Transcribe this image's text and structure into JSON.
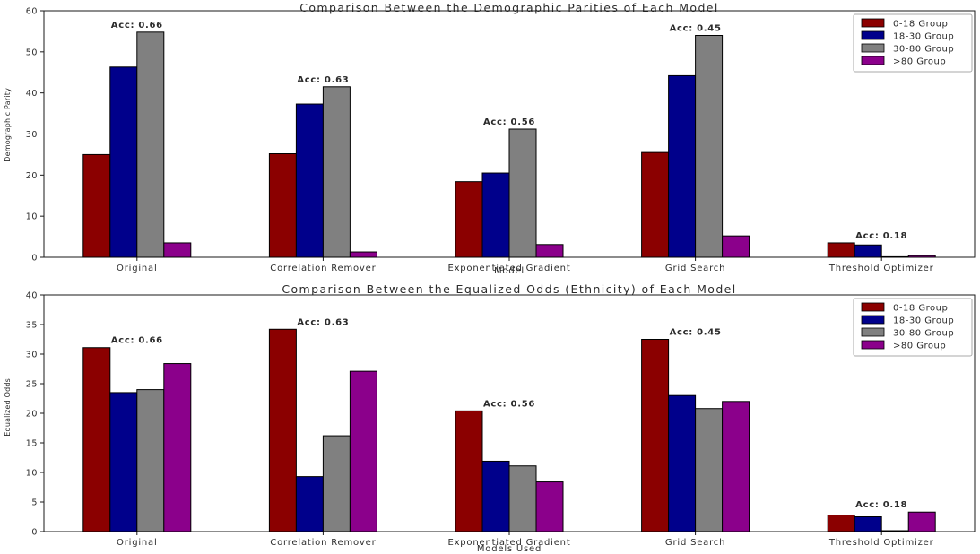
{
  "figure": {
    "background": "#ffffff",
    "spine_color": "#1a1a1a",
    "bar_edge_color": "#000000",
    "legend_border_color": "#aaaaaa"
  },
  "chart_data": [
    {
      "type": "bar",
      "title": "Comparison Between the Demographic Parities of Each Model",
      "xlabel": "Model",
      "ylabel": "Demographic Parity",
      "ylim": [
        0,
        60
      ],
      "yticks": [
        0,
        10,
        20,
        30,
        40,
        50,
        60
      ],
      "grid": false,
      "legend_position": "upper right",
      "categories": [
        "Original",
        "Correlation Remover",
        "Exponentiated Gradient",
        "Grid Search",
        "Threshold Optimizer"
      ],
      "series": [
        {
          "name": "0-18 Group",
          "color": "#8B0000",
          "values": [
            25.0,
            25.2,
            18.4,
            25.5,
            3.5
          ]
        },
        {
          "name": "18-30 Group",
          "color": "#00008B",
          "values": [
            46.3,
            37.3,
            20.5,
            44.2,
            3.0
          ]
        },
        {
          "name": "30-80 Group",
          "color": "#808080",
          "values": [
            54.8,
            41.5,
            31.2,
            54.0,
            0.1
          ]
        },
        {
          "name": ">80 Group",
          "color": "#8B008B",
          "values": [
            3.5,
            1.3,
            3.1,
            5.2,
            0.4
          ]
        }
      ],
      "annotations": [
        {
          "label": "Acc: 0.66",
          "category_index": 0
        },
        {
          "label": "Acc: 0.63",
          "category_index": 1
        },
        {
          "label": "Acc: 0.56",
          "category_index": 2
        },
        {
          "label": "Acc: 0.45",
          "category_index": 3
        },
        {
          "label": "Acc: 0.18",
          "category_index": 4
        }
      ]
    },
    {
      "type": "bar",
      "title": "Comparison Between the Equalized Odds (Ethnicity) of Each Model",
      "xlabel": "Models Used",
      "ylabel": "Equalized Odds",
      "ylim": [
        0,
        40
      ],
      "yticks": [
        0,
        5,
        10,
        15,
        20,
        25,
        30,
        35,
        40
      ],
      "grid": false,
      "legend_position": "upper right",
      "categories": [
        "Original",
        "Correlation Remover",
        "Exponentiated Gradient",
        "Grid Search",
        "Threshold Optimizer"
      ],
      "series": [
        {
          "name": "0-18 Group",
          "color": "#8B0000",
          "values": [
            31.1,
            34.2,
            20.4,
            32.5,
            2.8
          ]
        },
        {
          "name": "18-30 Group",
          "color": "#00008B",
          "values": [
            23.5,
            9.3,
            11.9,
            23.0,
            2.5
          ]
        },
        {
          "name": "30-80 Group",
          "color": "#808080",
          "values": [
            24.0,
            16.2,
            11.1,
            20.8,
            0.15
          ]
        },
        {
          "name": ">80 Group",
          "color": "#8B008B",
          "values": [
            28.4,
            27.1,
            8.4,
            22.0,
            3.3
          ]
        }
      ],
      "annotations": [
        {
          "label": "Acc: 0.66",
          "category_index": 0
        },
        {
          "label": "Acc: 0.63",
          "category_index": 1
        },
        {
          "label": "Acc: 0.56",
          "category_index": 2
        },
        {
          "label": "Acc: 0.45",
          "category_index": 3
        },
        {
          "label": "Acc: 0.18",
          "category_index": 4
        }
      ]
    }
  ]
}
